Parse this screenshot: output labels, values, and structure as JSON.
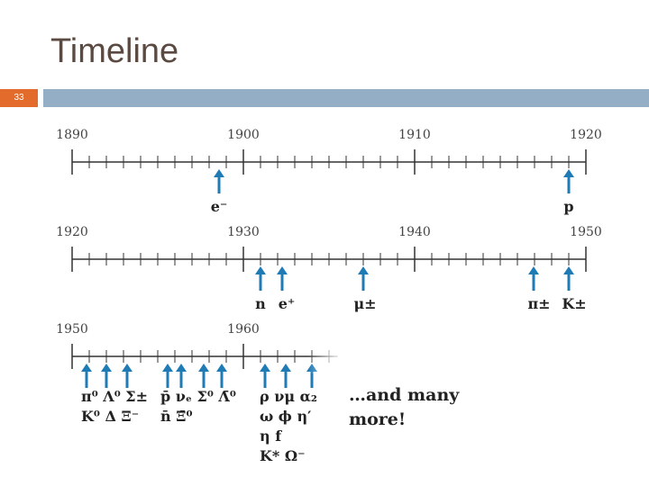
{
  "header": {
    "title": "Timeline",
    "slide_number": "33"
  },
  "timelines": [
    {
      "years": [
        "1890",
        "1900",
        "1910",
        "1920"
      ],
      "particles": [
        "e⁻",
        "p"
      ]
    },
    {
      "years": [
        "1920",
        "1930",
        "1940",
        "1950"
      ],
      "particles": [
        "n",
        "e⁺",
        "μ±",
        "π±",
        "K±"
      ]
    },
    {
      "years": [
        "1950",
        "1960"
      ],
      "label_groups": [
        [
          "π⁰ Λ⁰ Σ±",
          "K⁰ Δ  Ξ⁻"
        ],
        [
          "p̄ νₑ Σ⁰ Λ̄⁰",
          "n̄       Ξ̄⁰"
        ],
        [
          "ρ  νμ  α₂",
          "ω  ϕ  η′",
          "η   f",
          "K*   Ω⁻"
        ]
      ]
    }
  ],
  "note": [
    "…and many",
    "more!"
  ]
}
